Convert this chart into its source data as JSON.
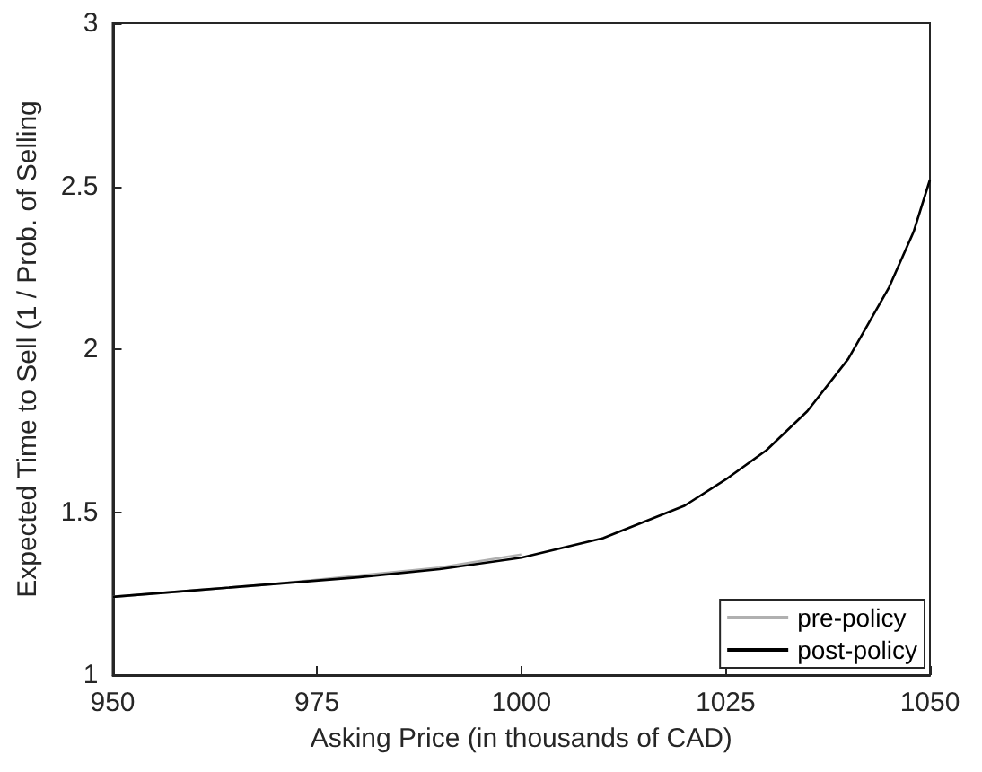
{
  "chart_data": {
    "type": "line",
    "xlabel": "Asking Price (in thousands of CAD)",
    "ylabel": "Expected Time to Sell (1 / Prob. of Selling",
    "series": [
      {
        "name": "pre-policy",
        "color": "#b0b0b0",
        "x": [
          950,
          960,
          970,
          980,
          990,
          1000
        ],
        "values": [
          1.24,
          1.26,
          1.28,
          1.305,
          1.33,
          1.37
        ]
      },
      {
        "name": "post-policy",
        "color": "#000000",
        "x": [
          950,
          960,
          970,
          980,
          990,
          1000,
          1010,
          1020,
          1025,
          1030,
          1035,
          1040,
          1045,
          1048,
          1050
        ],
        "values": [
          1.24,
          1.26,
          1.28,
          1.3,
          1.325,
          1.36,
          1.42,
          1.52,
          1.6,
          1.69,
          1.81,
          1.97,
          2.19,
          2.36,
          2.52
        ]
      }
    ],
    "xlim": [
      950,
      1050
    ],
    "xticks": [
      950,
      975,
      1000,
      1025,
      1050
    ],
    "ylim": [
      1,
      3
    ],
    "yticks": [
      1,
      1.5,
      2,
      2.5,
      3
    ],
    "grid": false,
    "legend": "bottom right",
    "marker": "none",
    "line_style": "solid"
  }
}
